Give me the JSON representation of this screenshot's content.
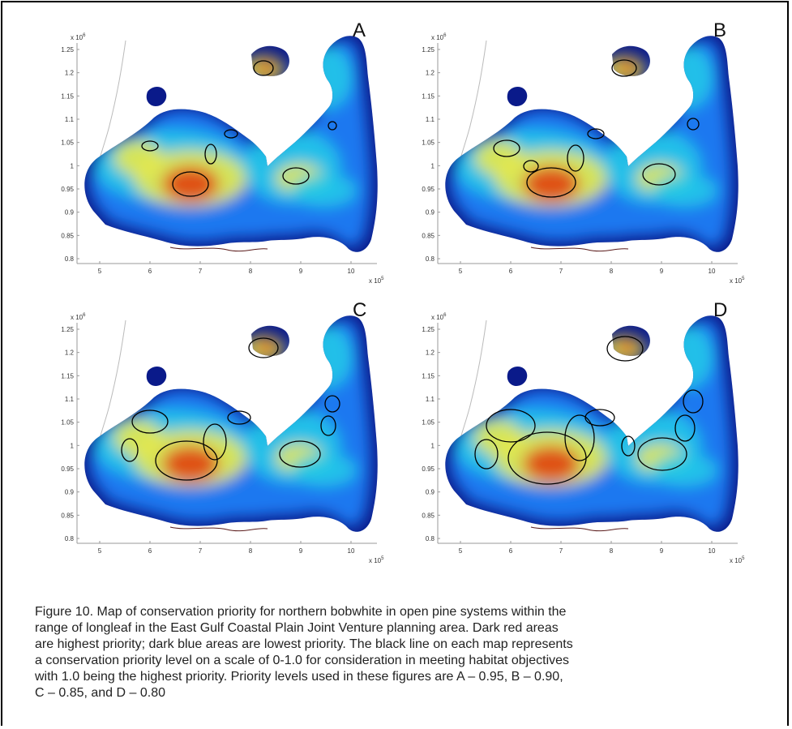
{
  "panels": [
    {
      "letter": "A",
      "level": 0.95
    },
    {
      "letter": "B",
      "level": 0.9
    },
    {
      "letter": "C",
      "level": 0.85
    },
    {
      "letter": "D",
      "level": 0.8
    }
  ],
  "axes": {
    "y_exponent_label": "x 10",
    "y_exponent_sup": "6",
    "x_exponent_label": "x 10",
    "x_exponent_sup": "5",
    "y_ticks": [
      "1.25",
      "1.2",
      "1.15",
      "1.1",
      "1.05",
      "1",
      "0.95",
      "0.9",
      "0.85",
      "0.8"
    ],
    "x_ticks": [
      "5",
      "6",
      "7",
      "8",
      "9",
      "10"
    ]
  },
  "colors": {
    "low": "#0a1a8a",
    "mid_low": "#1e78f0",
    "mid": "#20c8e8",
    "mid_high": "#e8e84a",
    "high": "#e04010",
    "contour": "#000000"
  },
  "caption": {
    "lines": [
      "Figure 10.  Map of conservation priority for northern bobwhite in open pine systems within the",
      "range of longleaf in the East Gulf Coastal Plain Joint Venture planning area. Dark red areas",
      "are highest priority; dark blue areas are lowest priority.  The black line on each map represents",
      "a conservation priority level on a scale of 0-1.0 for consideration in meeting habitat objectives",
      "with 1.0 being the highest priority.  Priority levels used in these figures are A – 0.95, B – 0.90,",
      "C – 0.85, and D – 0.80"
    ]
  }
}
